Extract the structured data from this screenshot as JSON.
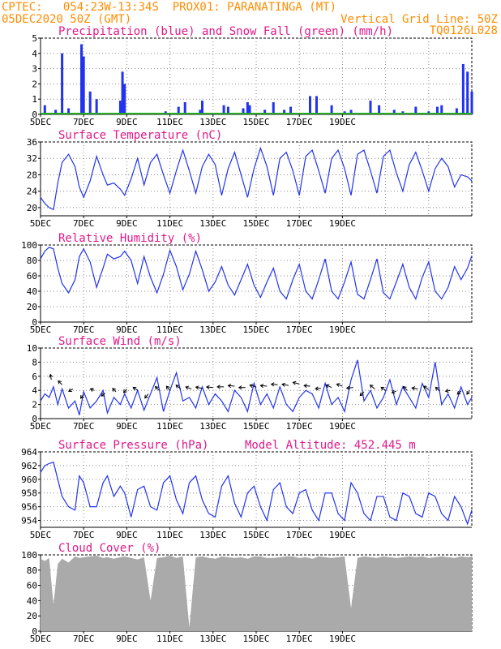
{
  "header": {
    "line1_left": "CPTEC:   054:23W-13:34S  PROX01: PARANATINGA (MT)",
    "line2_left": "05DEC2020 50Z (GMT)",
    "line2_right": "Vertical Grid Line: 50Z",
    "line3_right": "TQ0126L028"
  },
  "colors": {
    "header": "#ff8c00",
    "title": "#e0188a",
    "series": "#2233ee",
    "snow": "#22aa22",
    "cloud": "#aaaaaa",
    "arrow": "#000000"
  },
  "x_axis": {
    "labels": [
      "5DEC",
      "7DEC",
      "9DEC",
      "11DEC",
      "13DEC",
      "15DEC",
      "17DEC",
      "19DEC"
    ]
  },
  "chart_data": [
    {
      "type": "bar",
      "title": "Precipitation (blue) and Snow Fall (green) (mm/h)",
      "ylim": [
        0,
        5
      ],
      "yticks": [
        "0",
        "1",
        "2",
        "3",
        "4",
        "5"
      ],
      "x_days": [
        0.2,
        0.7,
        1.0,
        1.3,
        1.9,
        2.0,
        2.3,
        2.6,
        3.7,
        3.8,
        3.9,
        5.8,
        6.4,
        6.7,
        7.4,
        7.5,
        8.5,
        8.7,
        9.4,
        9.6,
        9.7,
        10.4,
        10.8,
        11.3,
        11.6,
        12.5,
        12.8,
        13.5,
        14.1,
        14.4,
        15.3,
        15.7,
        16.4,
        16.8,
        17.4,
        18.0,
        18.4,
        18.6,
        19.3,
        19.6,
        19.8,
        20.0
      ],
      "values": [
        0.6,
        0.3,
        4.0,
        0.4,
        4.6,
        3.8,
        1.5,
        1.0,
        0.9,
        2.8,
        2.0,
        0.2,
        0.5,
        0.8,
        0.3,
        0.9,
        0.6,
        0.5,
        0.4,
        0.8,
        0.6,
        0.3,
        0.8,
        0.3,
        0.5,
        1.2,
        1.2,
        0.6,
        0.2,
        0.3,
        0.9,
        0.6,
        0.3,
        0.2,
        0.5,
        0.2,
        0.5,
        0.6,
        0.4,
        3.3,
        2.8,
        1.5
      ],
      "snow": 0
    },
    {
      "type": "line",
      "title": "Surface Temperature (nC)",
      "ylim": [
        18,
        36
      ],
      "yticks": [
        "20",
        "24",
        "28",
        "32",
        "36"
      ],
      "ytick_values": [
        20,
        24,
        28,
        32,
        36
      ],
      "x_days": [
        0.0,
        0.2,
        0.4,
        0.6,
        0.8,
        1.0,
        1.3,
        1.6,
        1.8,
        2.0,
        2.3,
        2.6,
        2.9,
        3.1,
        3.4,
        3.7,
        3.9,
        4.2,
        4.5,
        4.8,
        5.1,
        5.4,
        5.7,
        6.0,
        6.3,
        6.6,
        6.9,
        7.2,
        7.5,
        7.8,
        8.1,
        8.4,
        8.7,
        9.0,
        9.3,
        9.6,
        9.9,
        10.2,
        10.5,
        10.8,
        11.1,
        11.4,
        11.7,
        12.0,
        12.3,
        12.6,
        12.9,
        13.2,
        13.5,
        13.8,
        14.1,
        14.4,
        14.7,
        15.0,
        15.3,
        15.6,
        15.9,
        16.2,
        16.5,
        16.8,
        17.1,
        17.4,
        17.7,
        18.0,
        18.3,
        18.6,
        18.9,
        19.2,
        19.5,
        19.8,
        20.0
      ],
      "values": [
        22.5,
        21.0,
        20.0,
        19.5,
        26.0,
        31.0,
        33.0,
        30.0,
        25.0,
        22.5,
        26.5,
        32.5,
        28.0,
        25.5,
        26.0,
        24.5,
        23.0,
        27.0,
        32.0,
        25.5,
        31.0,
        33.0,
        28.0,
        23.5,
        29.0,
        34.0,
        29.0,
        23.5,
        30.0,
        33.0,
        30.5,
        23.0,
        29.5,
        33.5,
        28.0,
        22.5,
        29.5,
        34.5,
        30.0,
        23.0,
        32.0,
        33.5,
        29.0,
        23.0,
        32.5,
        34.0,
        29.0,
        23.5,
        32.0,
        34.0,
        29.5,
        23.0,
        33.0,
        34.0,
        29.0,
        23.5,
        32.5,
        34.0,
        28.5,
        24.0,
        30.5,
        33.5,
        29.0,
        24.0,
        29.5,
        32.0,
        30.0,
        25.0,
        28.0,
        27.5,
        26.5
      ]
    },
    {
      "type": "line",
      "title": "Relative Humidity (%)",
      "ylim": [
        0,
        100
      ],
      "yticks": [
        "0",
        "20",
        "40",
        "60",
        "80",
        "100"
      ],
      "ytick_values": [
        0,
        20,
        40,
        60,
        80,
        100
      ],
      "x_days": [
        0.0,
        0.2,
        0.4,
        0.6,
        0.8,
        1.0,
        1.3,
        1.6,
        1.8,
        2.0,
        2.3,
        2.6,
        2.9,
        3.1,
        3.4,
        3.7,
        3.9,
        4.2,
        4.5,
        4.8,
        5.1,
        5.4,
        5.7,
        6.0,
        6.3,
        6.6,
        6.9,
        7.2,
        7.5,
        7.8,
        8.1,
        8.4,
        8.7,
        9.0,
        9.3,
        9.6,
        9.9,
        10.2,
        10.5,
        10.8,
        11.1,
        11.4,
        11.7,
        12.0,
        12.3,
        12.6,
        12.9,
        13.2,
        13.5,
        13.8,
        14.1,
        14.4,
        14.7,
        15.0,
        15.3,
        15.6,
        15.9,
        16.2,
        16.5,
        16.8,
        17.1,
        17.4,
        17.7,
        18.0,
        18.3,
        18.6,
        18.9,
        19.2,
        19.5,
        19.8,
        20.0
      ],
      "values": [
        82,
        92,
        97,
        95,
        70,
        50,
        38,
        55,
        85,
        95,
        78,
        45,
        70,
        88,
        82,
        85,
        92,
        80,
        50,
        85,
        58,
        38,
        62,
        93,
        72,
        42,
        62,
        92,
        68,
        40,
        52,
        72,
        48,
        35,
        55,
        75,
        48,
        32,
        52,
        70,
        40,
        30,
        55,
        75,
        40,
        30,
        55,
        82,
        40,
        30,
        52,
        78,
        36,
        30,
        55,
        82,
        38,
        30,
        52,
        75,
        45,
        30,
        58,
        78,
        40,
        30,
        45,
        72,
        55,
        70,
        86
      ]
    },
    {
      "type": "line",
      "title": "Surface Wind (m/s)",
      "ylim": [
        0,
        10
      ],
      "yticks": [
        "0",
        "2",
        "4",
        "6",
        "8",
        "10"
      ],
      "ytick_values": [
        0,
        2,
        4,
        6,
        8,
        10
      ],
      "x_days": [
        0.0,
        0.2,
        0.4,
        0.6,
        0.8,
        1.0,
        1.3,
        1.6,
        1.8,
        2.0,
        2.3,
        2.6,
        2.9,
        3.1,
        3.4,
        3.7,
        3.9,
        4.2,
        4.5,
        4.8,
        5.1,
        5.4,
        5.7,
        6.0,
        6.3,
        6.6,
        6.9,
        7.2,
        7.5,
        7.8,
        8.1,
        8.4,
        8.7,
        9.0,
        9.3,
        9.6,
        9.9,
        10.2,
        10.5,
        10.8,
        11.1,
        11.4,
        11.7,
        12.0,
        12.3,
        12.6,
        12.9,
        13.2,
        13.5,
        13.8,
        14.1,
        14.4,
        14.7,
        15.0,
        15.3,
        15.6,
        15.9,
        16.2,
        16.5,
        16.8,
        17.1,
        17.4,
        17.7,
        18.0,
        18.3,
        18.6,
        18.9,
        19.2,
        19.5,
        19.8,
        20.0
      ],
      "values": [
        2.5,
        3.5,
        3.0,
        4.5,
        2.0,
        4.2,
        1.5,
        2.5,
        0.5,
        3.8,
        1.5,
        2.5,
        4.0,
        0.8,
        3.0,
        2.0,
        3.5,
        1.5,
        4.0,
        1.2,
        3.5,
        5.8,
        1.0,
        4.0,
        6.5,
        2.5,
        3.0,
        1.5,
        4.5,
        2.0,
        3.5,
        2.5,
        1.0,
        4.0,
        3.0,
        1.0,
        5.0,
        2.0,
        3.5,
        1.5,
        4.5,
        2.0,
        1.0,
        3.0,
        4.0,
        3.5,
        1.5,
        5.0,
        2.0,
        3.0,
        1.0,
        5.5,
        8.3,
        2.5,
        4.0,
        1.5,
        3.0,
        5.5,
        2.0,
        4.5,
        3.0,
        1.5,
        5.0,
        3.0,
        8.0,
        2.0,
        3.5,
        1.5,
        4.5,
        2.0,
        3.0
      ],
      "arrows": {
        "x_days": [
          0.5,
          1.0,
          1.5,
          2.0,
          2.5,
          3.0,
          3.5,
          4.0,
          4.5,
          5.0,
          5.5,
          6.0,
          6.5,
          7.0,
          7.5,
          8.0,
          8.5,
          9.0,
          9.5,
          10.0,
          10.5,
          11.0,
          11.5,
          12.0,
          12.5,
          13.0,
          13.5,
          14.0,
          14.5,
          15.0,
          15.5,
          16.0,
          16.5,
          17.0,
          17.5,
          18.0,
          18.5,
          19.0,
          19.5,
          19.9
        ],
        "y": [
          5.5,
          4.8,
          4.2,
          3.4,
          4.0,
          3.6,
          3.8,
          4.2,
          4.0,
          3.5,
          4.0,
          4.0,
          4.2,
          4.2,
          4.3,
          4.4,
          4.5,
          4.6,
          4.4,
          4.5,
          4.6,
          4.8,
          4.7,
          4.9,
          4.6,
          4.3,
          4.4,
          4.6,
          4.4,
          3.8,
          4.2,
          4.0,
          3.9,
          4.0,
          4.2,
          4.1,
          3.9,
          4.0,
          3.9,
          4.0
        ],
        "dir_deg": [
          100,
          135,
          210,
          230,
          160,
          215,
          135,
          230,
          145,
          230,
          135,
          130,
          140,
          160,
          170,
          175,
          180,
          175,
          180,
          165,
          175,
          175,
          170,
          165,
          175,
          185,
          155,
          160,
          185,
          225,
          140,
          145,
          200,
          135,
          170,
          145,
          135,
          190,
          220,
          235
        ],
        "len_days": [
          0.25,
          0.25,
          0.22,
          0.22,
          0.2,
          0.22,
          0.22,
          0.22,
          0.25,
          0.25,
          0.25,
          0.25,
          0.28,
          0.28,
          0.3,
          0.3,
          0.3,
          0.3,
          0.3,
          0.3,
          0.3,
          0.3,
          0.3,
          0.3,
          0.28,
          0.25,
          0.28,
          0.28,
          0.3,
          0.25,
          0.28,
          0.25,
          0.22,
          0.25,
          0.28,
          0.28,
          0.25,
          0.22,
          0.22,
          0.22
        ]
      }
    },
    {
      "type": "line",
      "title": "Surface Pressure (hPa)",
      "annotation": "Model Altitude: 452.445  m",
      "ylim": [
        953,
        964
      ],
      "yticks": [
        "954",
        "956",
        "958",
        "960",
        "962",
        "964"
      ],
      "ytick_values": [
        954,
        956,
        958,
        960,
        962,
        964
      ],
      "x_days": [
        0.0,
        0.2,
        0.4,
        0.6,
        0.8,
        1.0,
        1.3,
        1.6,
        1.8,
        2.0,
        2.3,
        2.6,
        2.9,
        3.1,
        3.4,
        3.7,
        3.9,
        4.2,
        4.5,
        4.8,
        5.1,
        5.4,
        5.7,
        6.0,
        6.3,
        6.6,
        6.9,
        7.2,
        7.5,
        7.8,
        8.1,
        8.4,
        8.7,
        9.0,
        9.3,
        9.6,
        9.9,
        10.2,
        10.5,
        10.8,
        11.1,
        11.4,
        11.7,
        12.0,
        12.3,
        12.6,
        12.9,
        13.2,
        13.5,
        13.8,
        14.1,
        14.4,
        14.7,
        15.0,
        15.3,
        15.6,
        15.9,
        16.2,
        16.5,
        16.8,
        17.1,
        17.4,
        17.7,
        18.0,
        18.3,
        18.6,
        18.9,
        19.2,
        19.5,
        19.8,
        20.0
      ],
      "values": [
        961.0,
        962.0,
        962.3,
        962.5,
        960.0,
        957.5,
        956.0,
        955.5,
        960.5,
        959.5,
        956.0,
        956.0,
        959.5,
        960.5,
        957.5,
        959.0,
        958.0,
        954.5,
        958.5,
        959.0,
        956.0,
        955.5,
        959.5,
        960.5,
        957.0,
        955.0,
        959.5,
        960.5,
        957.0,
        955.0,
        954.5,
        959.0,
        960.5,
        956.5,
        954.5,
        958.0,
        959.0,
        956.0,
        954.0,
        958.5,
        959.5,
        956.0,
        955.0,
        958.0,
        958.5,
        955.5,
        954.0,
        958.0,
        958.0,
        955.0,
        954.0,
        959.5,
        958.0,
        955.0,
        954.0,
        957.5,
        957.5,
        954.5,
        954.0,
        958.0,
        957.5,
        955.0,
        954.5,
        958.0,
        957.5,
        955.0,
        954.0,
        957.5,
        956.0,
        953.5,
        955.5
      ]
    },
    {
      "type": "bar",
      "title": "Cloud Cover (%)",
      "ylim": [
        0,
        100
      ],
      "yticks": [
        "0",
        "20",
        "40",
        "60",
        "80",
        "100"
      ],
      "ytick_values": [
        0,
        20,
        40,
        60,
        80,
        100
      ],
      "x_days": [
        0.0,
        0.2,
        0.4,
        0.6,
        0.8,
        1.0,
        1.3,
        1.6,
        1.8,
        2.0,
        2.3,
        2.6,
        2.9,
        3.1,
        3.4,
        3.7,
        3.9,
        4.2,
        4.5,
        4.8,
        5.1,
        5.4,
        5.7,
        6.0,
        6.3,
        6.6,
        6.9,
        7.2,
        7.5,
        7.8,
        8.1,
        8.4,
        8.7,
        9.0,
        9.3,
        9.6,
        9.9,
        10.2,
        10.5,
        10.8,
        11.1,
        11.4,
        11.7,
        12.0,
        12.3,
        12.6,
        12.9,
        13.2,
        13.5,
        13.8,
        14.1,
        14.4,
        14.7,
        15.0,
        15.3,
        15.6,
        15.9,
        16.2,
        16.5,
        16.8,
        17.1,
        17.4,
        17.7,
        18.0,
        18.3,
        18.6,
        18.9,
        19.2,
        19.5,
        19.8,
        20.0
      ],
      "values": [
        95,
        92,
        96,
        35,
        88,
        95,
        90,
        98,
        96,
        97,
        98,
        99,
        96,
        97,
        95,
        97,
        98,
        96,
        94,
        97,
        40,
        96,
        97,
        99,
        96,
        98,
        5,
        97,
        98,
        96,
        95,
        98,
        97,
        96,
        97,
        95,
        98,
        98,
        96,
        96,
        97,
        98,
        98,
        96,
        97,
        95,
        98,
        97,
        96,
        97,
        98,
        30,
        96,
        98,
        97,
        96,
        98,
        97,
        96,
        97,
        98,
        97,
        98,
        96,
        97,
        98,
        97,
        96,
        98,
        97,
        98
      ]
    }
  ]
}
